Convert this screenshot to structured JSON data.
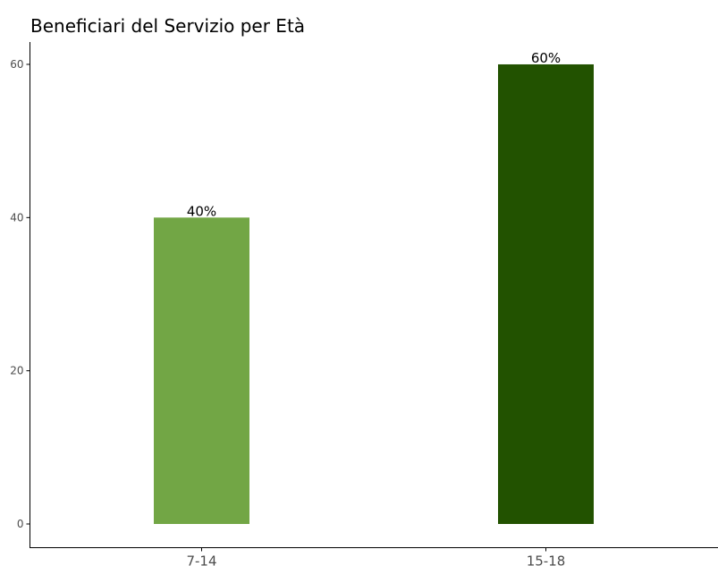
{
  "chart_data": {
    "type": "bar",
    "title": "Beneficiari del Servizio per Età",
    "xlabel": "",
    "ylabel": "",
    "categories": [
      "7-14",
      "15-18"
    ],
    "values": [
      40,
      60
    ],
    "data_labels": [
      "40%",
      "60%"
    ],
    "bar_colors": [
      "#72a645",
      "#225200"
    ],
    "ylim": [
      0,
      63
    ],
    "y_ticks": [
      0,
      20,
      40,
      60
    ],
    "grid": false,
    "legend": "none",
    "axis_color": "#000000",
    "tick_label_color": "#4d4d4d"
  }
}
